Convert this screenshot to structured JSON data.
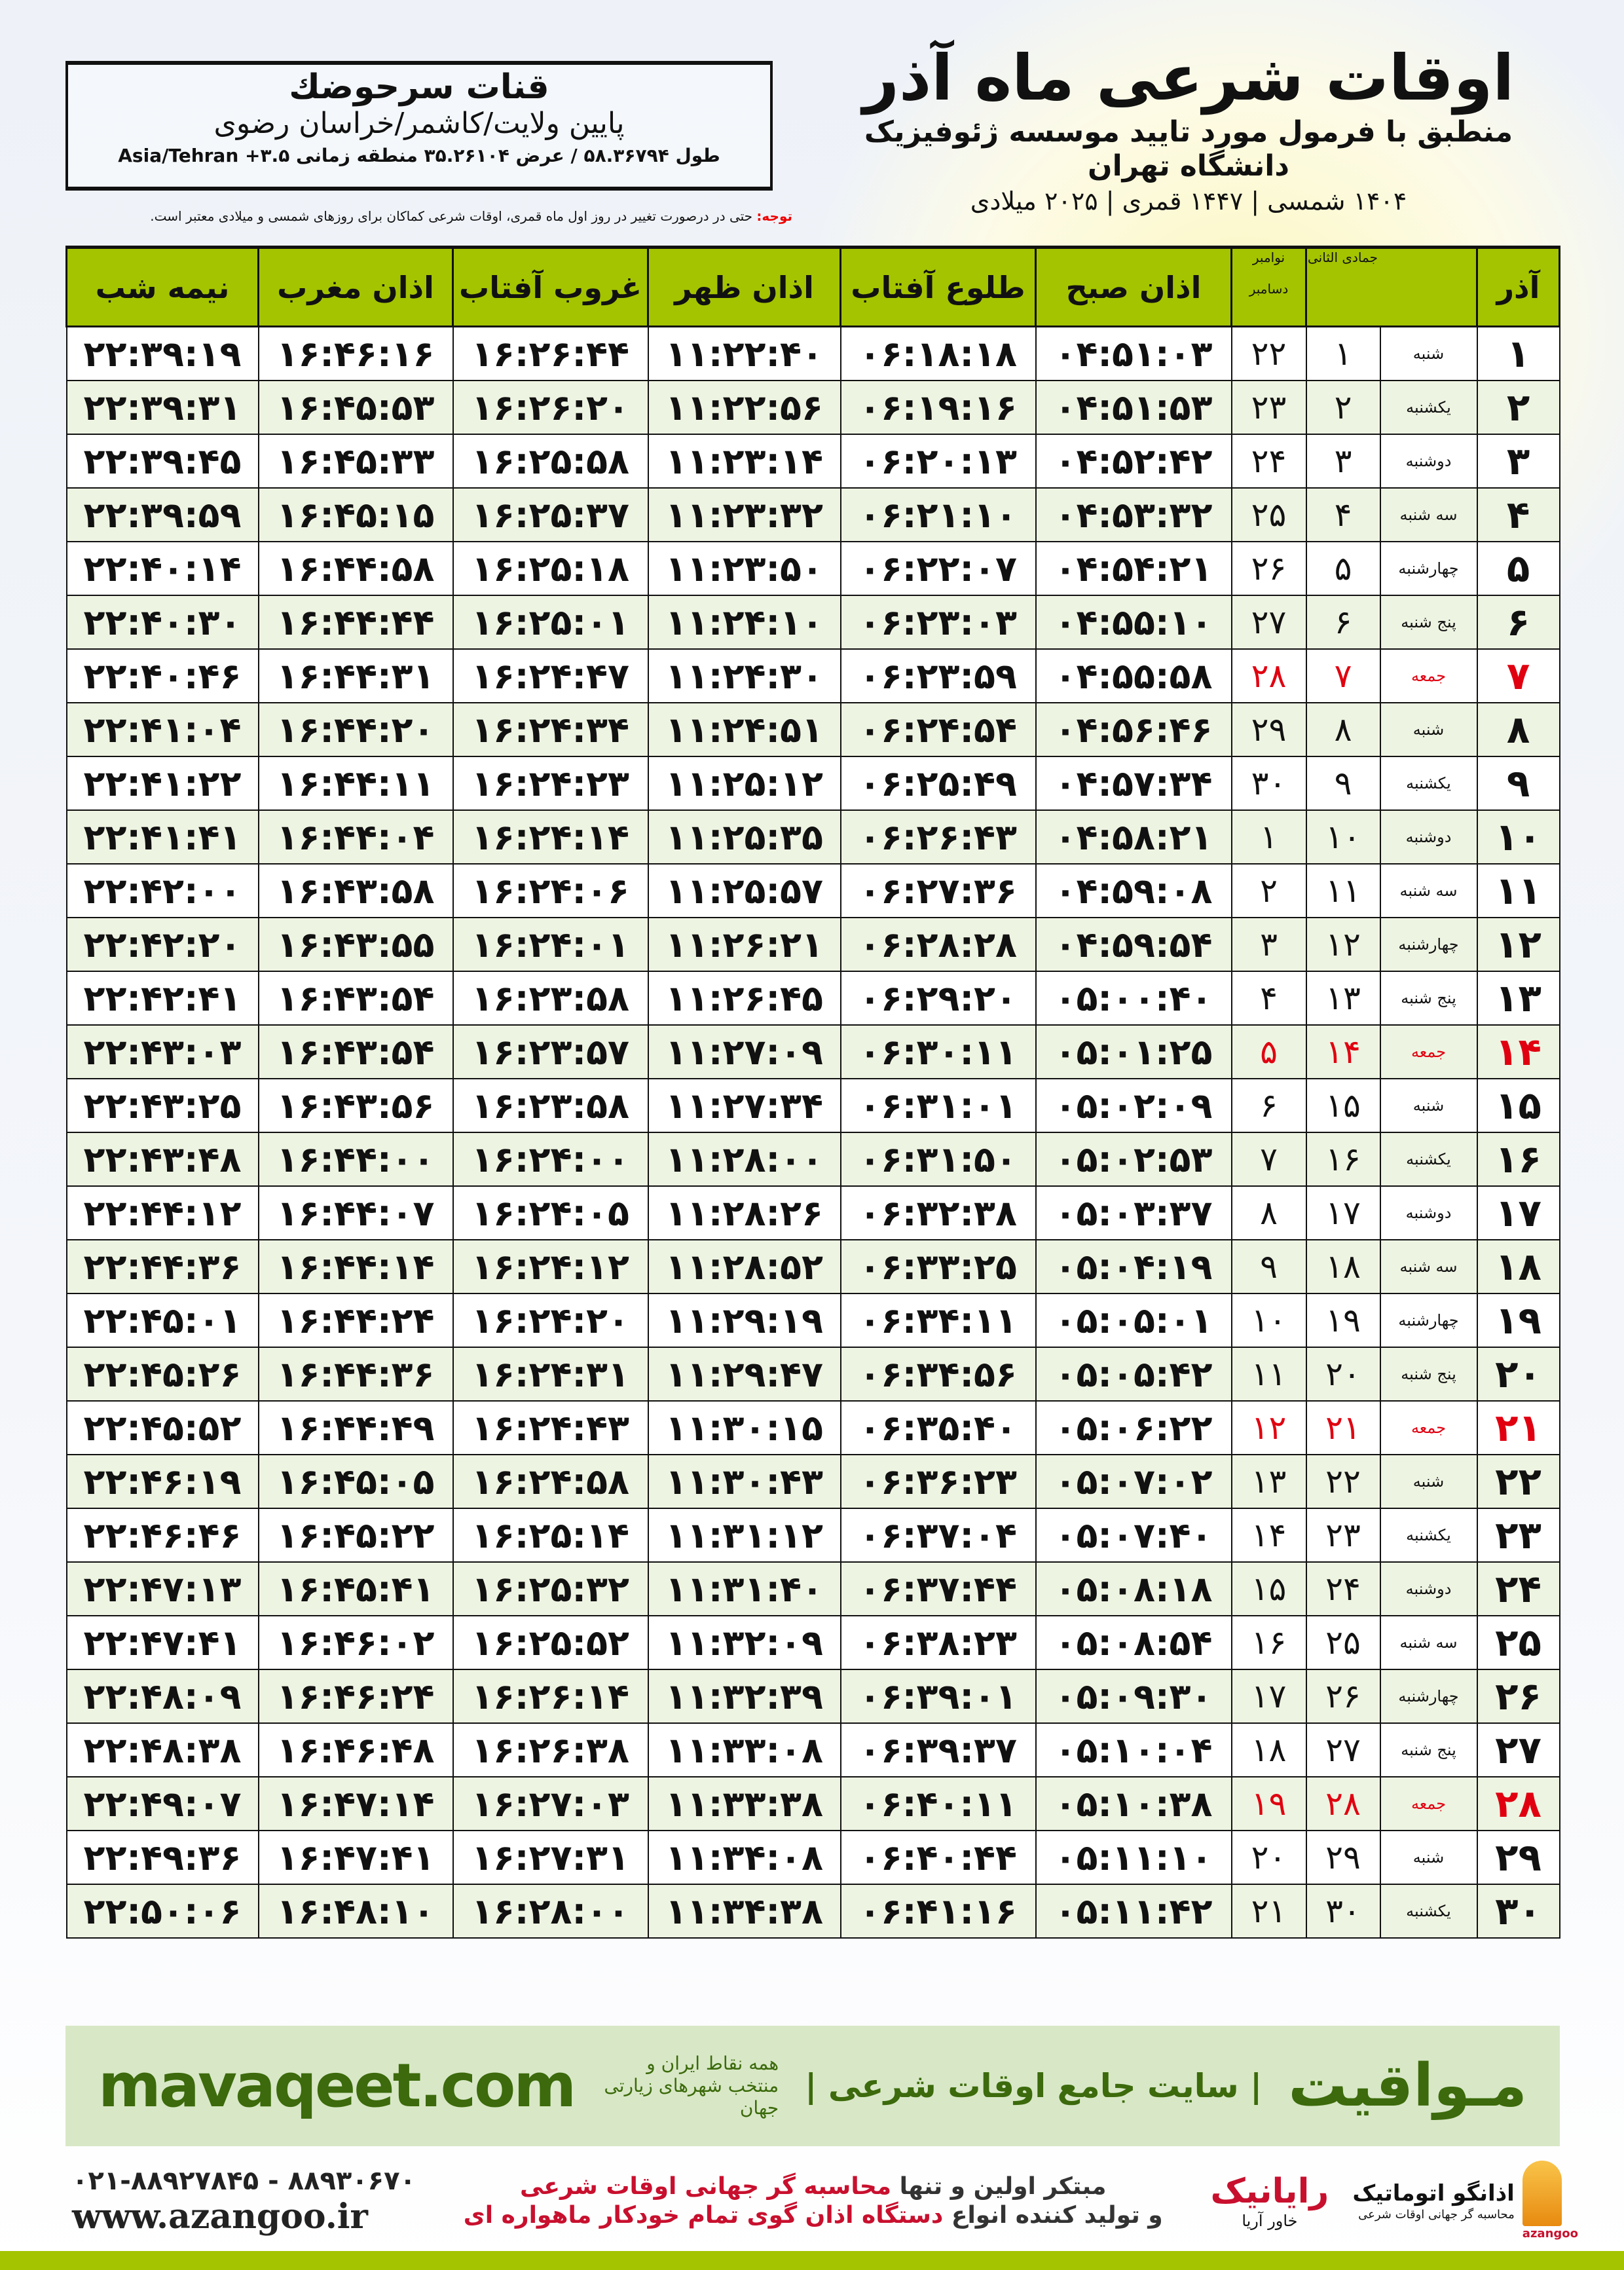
{
  "location": {
    "name": "قنات سرحوضك",
    "region": "پایین ولایت/کاشمر/خراسان رضوی",
    "coords": "طول ۵۸.۳۶۷۹۴ / عرض ۳۵.۲۶۱۰۴ منطقه زمانی Asia/Tehran +۳.۵"
  },
  "header": {
    "title": "اوقات شرعی ماه آذر",
    "subtitle": "منطبق با فرمول مورد تایید موسسه ژئوفیزیک دانشگاه تهران",
    "years": "۱۴۰۴ شمسی | ۱۴۴۷ قمری | ۲۰۲۵ میلادی"
  },
  "note": {
    "label": "توجه:",
    "text": " حتی در درصورت تغییر در روز اول ماه قمری، اوقات شرعی کماکان برای روزهای شمسی و میلادی معتبر است."
  },
  "table": {
    "columns": {
      "azar": "آذر",
      "jumada": "جمادی الثانی",
      "nov": "نوامبر",
      "dec": "دسامبر",
      "fajr": "اذان صبح",
      "sunrise": "طلوع آفتاب",
      "dhuhr": "اذان ظهر",
      "sunset": "غروب آفتاب",
      "maghrib": "اذان مغرب",
      "midnight": "نیمه شب"
    },
    "friday_color": "#e00010",
    "header_color": "#a4c400",
    "rows": [
      [
        "۱",
        "شنبه",
        "۱",
        "۲۲",
        "۰۴:۵۱:۰۳",
        "۰۶:۱۸:۱۸",
        "۱۱:۲۲:۴۰",
        "۱۶:۲۶:۴۴",
        "۱۶:۴۶:۱۶",
        "۲۲:۳۹:۱۹"
      ],
      [
        "۲",
        "یکشنبه",
        "۲",
        "۲۳",
        "۰۴:۵۱:۵۳",
        "۰۶:۱۹:۱۶",
        "۱۱:۲۲:۵۶",
        "۱۶:۲۶:۲۰",
        "۱۶:۴۵:۵۳",
        "۲۲:۳۹:۳۱"
      ],
      [
        "۳",
        "دوشنبه",
        "۳",
        "۲۴",
        "۰۴:۵۲:۴۲",
        "۰۶:۲۰:۱۳",
        "۱۱:۲۳:۱۴",
        "۱۶:۲۵:۵۸",
        "۱۶:۴۵:۳۳",
        "۲۲:۳۹:۴۵"
      ],
      [
        "۴",
        "سه شنبه",
        "۴",
        "۲۵",
        "۰۴:۵۳:۳۲",
        "۰۶:۲۱:۱۰",
        "۱۱:۲۳:۳۲",
        "۱۶:۲۵:۳۷",
        "۱۶:۴۵:۱۵",
        "۲۲:۳۹:۵۹"
      ],
      [
        "۵",
        "چهارشنبه",
        "۵",
        "۲۶",
        "۰۴:۵۴:۲۱",
        "۰۶:۲۲:۰۷",
        "۱۱:۲۳:۵۰",
        "۱۶:۲۵:۱۸",
        "۱۶:۴۴:۵۸",
        "۲۲:۴۰:۱۴"
      ],
      [
        "۶",
        "پنج شنبه",
        "۶",
        "۲۷",
        "۰۴:۵۵:۱۰",
        "۰۶:۲۳:۰۳",
        "۱۱:۲۴:۱۰",
        "۱۶:۲۵:۰۱",
        "۱۶:۴۴:۴۴",
        "۲۲:۴۰:۳۰"
      ],
      [
        "۷",
        "جمعه",
        "۷",
        "۲۸",
        "۰۴:۵۵:۵۸",
        "۰۶:۲۳:۵۹",
        "۱۱:۲۴:۳۰",
        "۱۶:۲۴:۴۷",
        "۱۶:۴۴:۳۱",
        "۲۲:۴۰:۴۶"
      ],
      [
        "۸",
        "شنبه",
        "۸",
        "۲۹",
        "۰۴:۵۶:۴۶",
        "۰۶:۲۴:۵۴",
        "۱۱:۲۴:۵۱",
        "۱۶:۲۴:۳۴",
        "۱۶:۴۴:۲۰",
        "۲۲:۴۱:۰۴"
      ],
      [
        "۹",
        "یکشنبه",
        "۹",
        "۳۰",
        "۰۴:۵۷:۳۴",
        "۰۶:۲۵:۴۹",
        "۱۱:۲۵:۱۲",
        "۱۶:۲۴:۲۳",
        "۱۶:۴۴:۱۱",
        "۲۲:۴۱:۲۲"
      ],
      [
        "۱۰",
        "دوشنبه",
        "۱۰",
        "۱",
        "۰۴:۵۸:۲۱",
        "۰۶:۲۶:۴۳",
        "۱۱:۲۵:۳۵",
        "۱۶:۲۴:۱۴",
        "۱۶:۴۴:۰۴",
        "۲۲:۴۱:۴۱"
      ],
      [
        "۱۱",
        "سه شنبه",
        "۱۱",
        "۲",
        "۰۴:۵۹:۰۸",
        "۰۶:۲۷:۳۶",
        "۱۱:۲۵:۵۷",
        "۱۶:۲۴:۰۶",
        "۱۶:۴۳:۵۸",
        "۲۲:۴۲:۰۰"
      ],
      [
        "۱۲",
        "چهارشنبه",
        "۱۲",
        "۳",
        "۰۴:۵۹:۵۴",
        "۰۶:۲۸:۲۸",
        "۱۱:۲۶:۲۱",
        "۱۶:۲۴:۰۱",
        "۱۶:۴۳:۵۵",
        "۲۲:۴۲:۲۰"
      ],
      [
        "۱۳",
        "پنج شنبه",
        "۱۳",
        "۴",
        "۰۵:۰۰:۴۰",
        "۰۶:۲۹:۲۰",
        "۱۱:۲۶:۴۵",
        "۱۶:۲۳:۵۸",
        "۱۶:۴۳:۵۴",
        "۲۲:۴۲:۴۱"
      ],
      [
        "۱۴",
        "جمعه",
        "۱۴",
        "۵",
        "۰۵:۰۱:۲۵",
        "۰۶:۳۰:۱۱",
        "۱۱:۲۷:۰۹",
        "۱۶:۲۳:۵۷",
        "۱۶:۴۳:۵۴",
        "۲۲:۴۳:۰۳"
      ],
      [
        "۱۵",
        "شنبه",
        "۱۵",
        "۶",
        "۰۵:۰۲:۰۹",
        "۰۶:۳۱:۰۱",
        "۱۱:۲۷:۳۴",
        "۱۶:۲۳:۵۸",
        "۱۶:۴۳:۵۶",
        "۲۲:۴۳:۲۵"
      ],
      [
        "۱۶",
        "یکشنبه",
        "۱۶",
        "۷",
        "۰۵:۰۲:۵۳",
        "۰۶:۳۱:۵۰",
        "۱۱:۲۸:۰۰",
        "۱۶:۲۴:۰۰",
        "۱۶:۴۴:۰۰",
        "۲۲:۴۳:۴۸"
      ],
      [
        "۱۷",
        "دوشنبه",
        "۱۷",
        "۸",
        "۰۵:۰۳:۳۷",
        "۰۶:۳۲:۳۸",
        "۱۱:۲۸:۲۶",
        "۱۶:۲۴:۰۵",
        "۱۶:۴۴:۰۷",
        "۲۲:۴۴:۱۲"
      ],
      [
        "۱۸",
        "سه شنبه",
        "۱۸",
        "۹",
        "۰۵:۰۴:۱۹",
        "۰۶:۳۳:۲۵",
        "۱۱:۲۸:۵۲",
        "۱۶:۲۴:۱۲",
        "۱۶:۴۴:۱۴",
        "۲۲:۴۴:۳۶"
      ],
      [
        "۱۹",
        "چهارشنبه",
        "۱۹",
        "۱۰",
        "۰۵:۰۵:۰۱",
        "۰۶:۳۴:۱۱",
        "۱۱:۲۹:۱۹",
        "۱۶:۲۴:۲۰",
        "۱۶:۴۴:۲۴",
        "۲۲:۴۵:۰۱"
      ],
      [
        "۲۰",
        "پنج شنبه",
        "۲۰",
        "۱۱",
        "۰۵:۰۵:۴۲",
        "۰۶:۳۴:۵۶",
        "۱۱:۲۹:۴۷",
        "۱۶:۲۴:۳۱",
        "۱۶:۴۴:۳۶",
        "۲۲:۴۵:۲۶"
      ],
      [
        "۲۱",
        "جمعه",
        "۲۱",
        "۱۲",
        "۰۵:۰۶:۲۲",
        "۰۶:۳۵:۴۰",
        "۱۱:۳۰:۱۵",
        "۱۶:۲۴:۴۳",
        "۱۶:۴۴:۴۹",
        "۲۲:۴۵:۵۲"
      ],
      [
        "۲۲",
        "شنبه",
        "۲۲",
        "۱۳",
        "۰۵:۰۷:۰۲",
        "۰۶:۳۶:۲۳",
        "۱۱:۳۰:۴۳",
        "۱۶:۲۴:۵۸",
        "۱۶:۴۵:۰۵",
        "۲۲:۴۶:۱۹"
      ],
      [
        "۲۳",
        "یکشنبه",
        "۲۳",
        "۱۴",
        "۰۵:۰۷:۴۰",
        "۰۶:۳۷:۰۴",
        "۱۱:۳۱:۱۲",
        "۱۶:۲۵:۱۴",
        "۱۶:۴۵:۲۲",
        "۲۲:۴۶:۴۶"
      ],
      [
        "۲۴",
        "دوشنبه",
        "۲۴",
        "۱۵",
        "۰۵:۰۸:۱۸",
        "۰۶:۳۷:۴۴",
        "۱۱:۳۱:۴۰",
        "۱۶:۲۵:۳۲",
        "۱۶:۴۵:۴۱",
        "۲۲:۴۷:۱۳"
      ],
      [
        "۲۵",
        "سه شنبه",
        "۲۵",
        "۱۶",
        "۰۵:۰۸:۵۴",
        "۰۶:۳۸:۲۳",
        "۱۱:۳۲:۰۹",
        "۱۶:۲۵:۵۲",
        "۱۶:۴۶:۰۲",
        "۲۲:۴۷:۴۱"
      ],
      [
        "۲۶",
        "چهارشنبه",
        "۲۶",
        "۱۷",
        "۰۵:۰۹:۳۰",
        "۰۶:۳۹:۰۱",
        "۱۱:۳۲:۳۹",
        "۱۶:۲۶:۱۴",
        "۱۶:۴۶:۲۴",
        "۲۲:۴۸:۰۹"
      ],
      [
        "۲۷",
        "پنج شنبه",
        "۲۷",
        "۱۸",
        "۰۵:۱۰:۰۴",
        "۰۶:۳۹:۳۷",
        "۱۱:۳۳:۰۸",
        "۱۶:۲۶:۳۸",
        "۱۶:۴۶:۴۸",
        "۲۲:۴۸:۳۸"
      ],
      [
        "۲۸",
        "جمعه",
        "۲۸",
        "۱۹",
        "۰۵:۱۰:۳۸",
        "۰۶:۴۰:۱۱",
        "۱۱:۳۳:۳۸",
        "۱۶:۲۷:۰۳",
        "۱۶:۴۷:۱۴",
        "۲۲:۴۹:۰۷"
      ],
      [
        "۲۹",
        "شنبه",
        "۲۹",
        "۲۰",
        "۰۵:۱۱:۱۰",
        "۰۶:۴۰:۴۴",
        "۱۱:۳۴:۰۸",
        "۱۶:۲۷:۳۱",
        "۱۶:۴۷:۴۱",
        "۲۲:۴۹:۳۶"
      ],
      [
        "۳۰",
        "یکشنبه",
        "۳۰",
        "۲۱",
        "۰۵:۱۱:۴۲",
        "۰۶:۴۱:۱۶",
        "۱۱:۳۴:۳۸",
        "۱۶:۲۸:۰۰",
        "۱۶:۴۸:۱۰",
        "۲۲:۵۰:۰۶"
      ]
    ]
  },
  "banner": {
    "url": "mavaqeet.com",
    "brand": "مـواقیت",
    "tagline": "| سایت جامع اوقات شرعی |",
    "tagline2": "همه نقاط ایران و منتخب شهرهای زیارتی جهان",
    "color": "#3c6a0c"
  },
  "footer": {
    "phone": "۰۲۱-۸۸۹۲۷۸۴۵ - ۸۸۹۳۰۶۷۰",
    "website": "www.azangoo.ir",
    "line1_a": "مبتکر اولین و تنها ",
    "line1_b": "محاسبه گر جهانی اوقات شرعی",
    "line2_a": "و تولید کننده انواع ",
    "line2_b": "دستگاه اذان گوی تمام خودکار ماهواره ای",
    "rayanik": "رایانیک",
    "rayanik_sub": "خاور آریا",
    "azangoo_name": "اذانگو اتوماتیک",
    "azangoo_sub": "محاسبه گر جهانی اوقات شرعی",
    "azangoo_en": "azangoo",
    "accent_red": "#c8102e"
  }
}
